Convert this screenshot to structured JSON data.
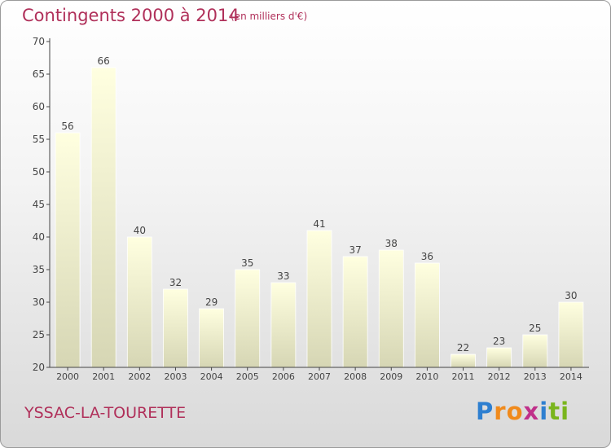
{
  "chart_data": {
    "type": "bar",
    "title": "Contingents 2000 à 2014",
    "subtitle": "(en milliers d'€)",
    "categories": [
      "2000",
      "2001",
      "2002",
      "2003",
      "2004",
      "2005",
      "2006",
      "2007",
      "2008",
      "2009",
      "2010",
      "2011",
      "2012",
      "2013",
      "2014"
    ],
    "values": [
      56,
      66,
      40,
      32,
      29,
      35,
      33,
      41,
      37,
      38,
      36,
      22,
      23,
      25,
      30
    ],
    "value_labels": [
      "56",
      "66",
      "40",
      "32",
      "29",
      "35",
      "33",
      "41",
      "37",
      "38",
      "36",
      "22",
      "23",
      "25",
      "30"
    ],
    "yticks": [
      "20",
      "25",
      "30",
      "35",
      "40",
      "45",
      "50",
      "55",
      "60",
      "65",
      "70"
    ],
    "ylim": [
      20,
      70
    ],
    "xlabel": "",
    "ylabel": "",
    "grid": false,
    "bar_color_top": "#ffffe0",
    "bar_color_bottom": "#d6d6b4"
  },
  "footer": {
    "place": "YSSAC-LA-TOURETTE",
    "logo_letters": [
      "P",
      "r",
      "o",
      "x",
      "i",
      "t",
      "i"
    ],
    "logo_colors": [
      "#2e7fd0",
      "#f08a1c",
      "#f08a1c",
      "#c0308a",
      "#2e7fd0",
      "#7ab51d",
      "#7ab51d"
    ]
  },
  "colors": {
    "title": "#b0305a",
    "axis": "#444444"
  }
}
